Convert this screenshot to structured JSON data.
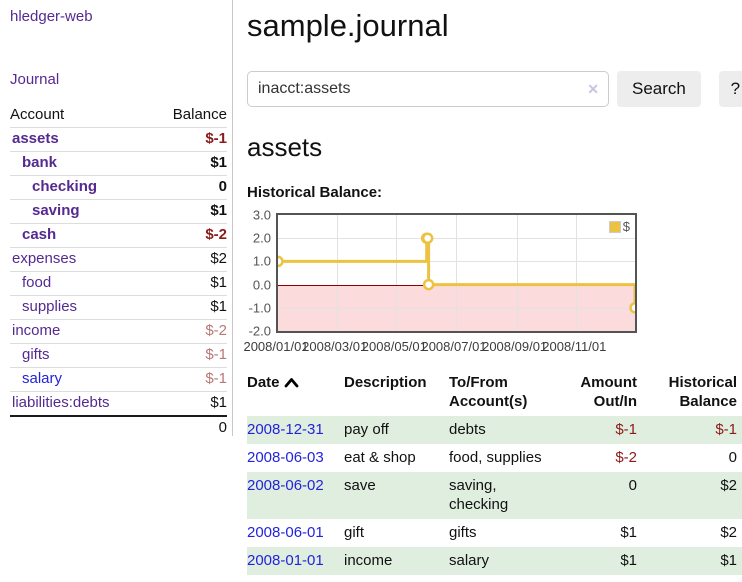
{
  "app": {
    "brand": "hledger-web",
    "nav_journal": "Journal"
  },
  "sidebar": {
    "col_account": "Account",
    "col_balance": "Balance",
    "accounts": [
      {
        "name": "assets",
        "balance": "$-1",
        "depth": 1,
        "bold": true,
        "neg": "strong",
        "link": "purple"
      },
      {
        "name": "bank",
        "balance": "$1",
        "depth": 2,
        "bold": true,
        "neg": "none",
        "link": "purple"
      },
      {
        "name": "checking",
        "balance": "0",
        "depth": 3,
        "bold": true,
        "neg": "none",
        "link": "purple"
      },
      {
        "name": "saving",
        "balance": "$1",
        "depth": 3,
        "bold": true,
        "neg": "none",
        "link": "purple"
      },
      {
        "name": "cash",
        "balance": "$-2",
        "depth": 2,
        "bold": true,
        "neg": "strong",
        "link": "purple"
      },
      {
        "name": "expenses",
        "balance": "$2",
        "depth": 1,
        "bold": false,
        "neg": "none",
        "link": "purple"
      },
      {
        "name": "food",
        "balance": "$1",
        "depth": 2,
        "bold": false,
        "neg": "none",
        "link": "purple"
      },
      {
        "name": "supplies",
        "balance": "$1",
        "depth": 2,
        "bold": false,
        "neg": "none",
        "link": "purple"
      },
      {
        "name": "income",
        "balance": "$-2",
        "depth": 1,
        "bold": false,
        "neg": "soft",
        "link": "purple"
      },
      {
        "name": "gifts",
        "balance": "$-1",
        "depth": 2,
        "bold": false,
        "neg": "soft",
        "link": "purple"
      },
      {
        "name": "salary",
        "balance": "$-1",
        "depth": 2,
        "bold": false,
        "neg": "soft",
        "link": "blue"
      },
      {
        "name": "liabilities:debts",
        "balance": "$1",
        "depth": 1,
        "bold": false,
        "neg": "none",
        "link": "purple"
      }
    ],
    "total": "0"
  },
  "header": {
    "title": "sample.journal"
  },
  "search": {
    "value": "inacct:assets",
    "clear_icon": "✕",
    "button_label": "Search",
    "help_label": "?"
  },
  "account_page": {
    "heading": "assets",
    "chart_title": "Historical Balance:"
  },
  "chart_data": {
    "type": "line",
    "step": true,
    "title": "Historical Balance:",
    "series": [
      {
        "name": "$",
        "color": "#edc240",
        "points": [
          [
            "2008-01-01",
            1
          ],
          [
            "2008-06-01",
            2
          ],
          [
            "2008-06-02",
            2
          ],
          [
            "2008-06-03",
            0
          ],
          [
            "2008-12-31",
            -1
          ]
        ]
      }
    ],
    "xlim": [
      "2008-01-01",
      "2008-12-31"
    ],
    "ylim": [
      -2,
      3
    ],
    "x_ticks": [
      "2008/01/01",
      "2008/03/01",
      "2008/05/01",
      "2008/07/01",
      "2008/09/01",
      "2008/11/01"
    ],
    "y_ticks": [
      3.0,
      2.0,
      1.0,
      0.0,
      -1.0,
      -2.0
    ],
    "grid": true,
    "legend": {
      "label": "$",
      "position": "top-right"
    },
    "zero_line_color": "#8b0000",
    "negative_region_color": "#fbdbdb"
  },
  "register": {
    "columns": [
      "Date",
      "Description",
      "To/From Account(s)",
      "Amount Out/In",
      "Historical Balance"
    ],
    "rows": [
      {
        "date": "2008-12-31",
        "description": "pay off",
        "accounts": "debts",
        "amount": "$-1",
        "amount_neg": true,
        "balance": "$-1",
        "balance_neg": true
      },
      {
        "date": "2008-06-03",
        "description": "eat & shop",
        "accounts": "food, supplies",
        "amount": "$-2",
        "amount_neg": true,
        "balance": "0",
        "balance_neg": false
      },
      {
        "date": "2008-06-02",
        "description": "save",
        "accounts": "saving, checking",
        "amount": "0",
        "amount_neg": false,
        "balance": "$2",
        "balance_neg": false
      },
      {
        "date": "2008-06-01",
        "description": "gift",
        "accounts": "gifts",
        "amount": "$1",
        "amount_neg": false,
        "balance": "$2",
        "balance_neg": false
      },
      {
        "date": "2008-01-01",
        "description": "income",
        "accounts": "salary",
        "amount": "$1",
        "amount_neg": false,
        "balance": "$1",
        "balance_neg": false
      }
    ]
  }
}
